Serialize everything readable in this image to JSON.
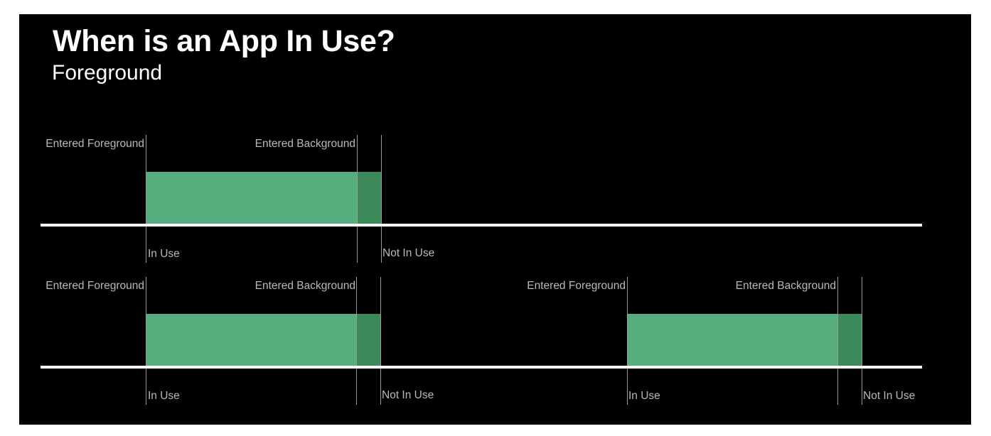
{
  "slide": {
    "title": "When is an App In Use?",
    "subtitle": "Foreground"
  },
  "colors": {
    "background": "#000000",
    "text": "#ffffff",
    "label": "#b9b9b9",
    "in_use_bar": "#56ad7d",
    "grace_period_bar": "#3c8a59",
    "timeline": "#ffffff"
  },
  "timelines": [
    {
      "sessions": [
        {
          "entered_foreground_label": "Entered Foreground",
          "entered_background_label": "Entered Background",
          "in_use_label": "In Use",
          "not_in_use_label": "Not In Use"
        }
      ]
    },
    {
      "sessions": [
        {
          "entered_foreground_label": "Entered Foreground",
          "entered_background_label": "Entered Background",
          "in_use_label": "In Use",
          "not_in_use_label": "Not In Use"
        },
        {
          "entered_foreground_label": "Entered Foreground",
          "entered_background_label": "Entered Background",
          "in_use_label": "In Use",
          "not_in_use_label": "Not In Use"
        }
      ]
    }
  ]
}
